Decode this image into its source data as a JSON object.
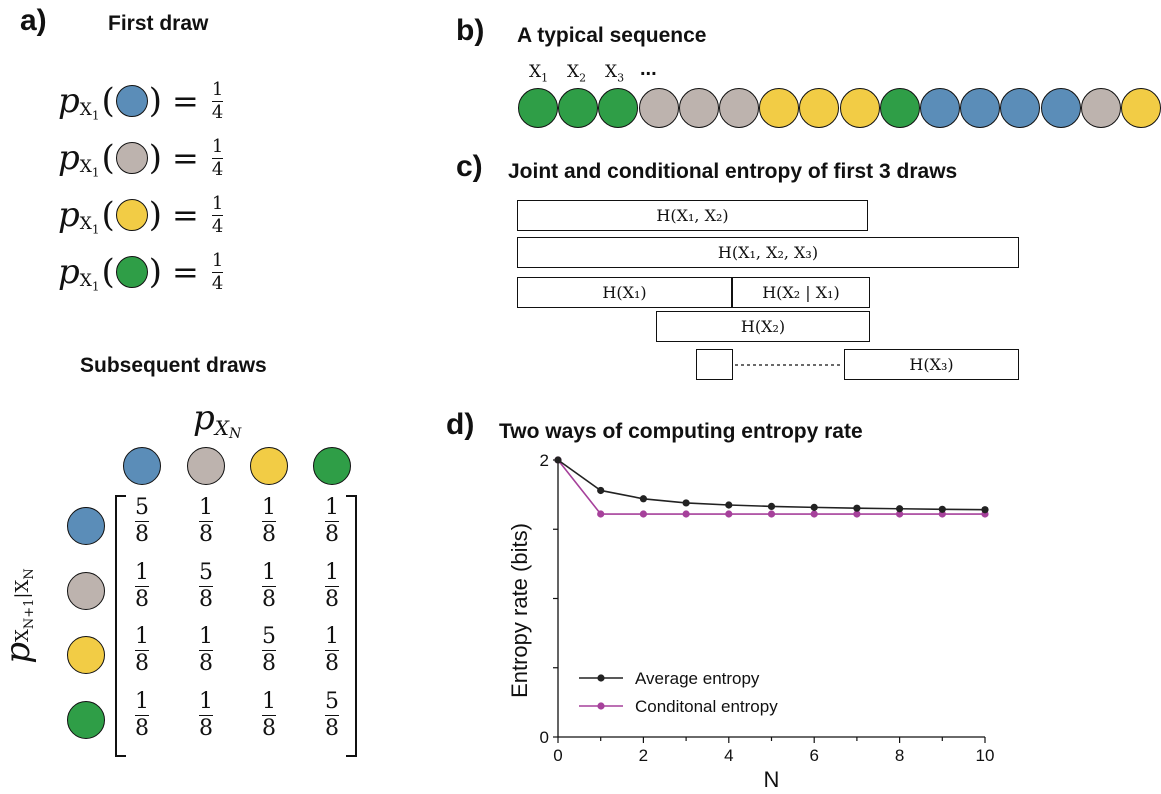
{
  "colors": {
    "blue": "#5b8db8",
    "gray": "#bdb3ae",
    "yellow": "#f2cc45",
    "green": "#2f9e47",
    "conditional": "#a6419b",
    "average": "#222222"
  },
  "panel_a": {
    "letter": "a)",
    "title": "First draw",
    "p_symbol": "p",
    "p_subscript": "X",
    "p_subscript_index": "1",
    "equals": "=",
    "prob_num": "1",
    "prob_den": "4",
    "first_draw_colors": [
      "blue",
      "gray",
      "yellow",
      "green"
    ],
    "subsequent_title": "Subsequent draws",
    "column_label_p": "p",
    "column_label_sub": "X",
    "column_label_subsub": "N",
    "row_label": "p",
    "row_label_sub": "X",
    "row_label_subsub1": "N+1",
    "row_label_bar": "|X",
    "row_label_subsub2": "N",
    "matrix_colors": [
      "blue",
      "gray",
      "yellow",
      "green"
    ],
    "matrix": [
      [
        [
          "5",
          "8"
        ],
        [
          "1",
          "8"
        ],
        [
          "1",
          "8"
        ],
        [
          "1",
          "8"
        ]
      ],
      [
        [
          "1",
          "8"
        ],
        [
          "5",
          "8"
        ],
        [
          "1",
          "8"
        ],
        [
          "1",
          "8"
        ]
      ],
      [
        [
          "1",
          "8"
        ],
        [
          "1",
          "8"
        ],
        [
          "5",
          "8"
        ],
        [
          "1",
          "8"
        ]
      ],
      [
        [
          "1",
          "8"
        ],
        [
          "1",
          "8"
        ],
        [
          "1",
          "8"
        ],
        [
          "5",
          "8"
        ]
      ]
    ]
  },
  "panel_b": {
    "letter": "b)",
    "title": "A typical sequence",
    "labels": [
      "X1",
      "X2",
      "X3"
    ],
    "label_base": "X",
    "label_subs": [
      "1",
      "2",
      "3"
    ],
    "ellipsis": "...",
    "sequence": [
      "green",
      "green",
      "green",
      "gray",
      "gray",
      "gray",
      "yellow",
      "yellow",
      "yellow",
      "green",
      "blue",
      "blue",
      "blue",
      "blue",
      "gray",
      "yellow"
    ]
  },
  "panel_c": {
    "letter": "c)",
    "title": "Joint and conditional entropy of first 3 draws",
    "boxes": [
      "H(X₁, X₂)",
      "H(X₁, X₂, X₃)",
      "H(X₁)",
      "H(X₂ | X₁)",
      "H(X₂)",
      "",
      "H(X₃)"
    ]
  },
  "panel_d": {
    "letter": "d)",
    "title": "Two ways of computing entropy rate",
    "chart_data": {
      "type": "line",
      "xlabel": "N",
      "ylabel": "Entropy rate (bits)",
      "xlim": [
        0,
        10
      ],
      "ylim": [
        0,
        2
      ],
      "xticks": [
        0,
        2,
        4,
        6,
        8,
        10
      ],
      "yticks_labeled": [
        0,
        2
      ],
      "grid": false,
      "legend_position": "bottom-left",
      "series": [
        {
          "name": "Average entropy",
          "color": "#222222",
          "x": [
            0,
            1,
            2,
            3,
            4,
            5,
            6,
            7,
            8,
            9,
            10
          ],
          "y": [
            2.0,
            1.78,
            1.72,
            1.69,
            1.675,
            1.665,
            1.658,
            1.652,
            1.648,
            1.644,
            1.641
          ]
        },
        {
          "name": "Conditonal entropy",
          "color": "#a6419b",
          "x": [
            0,
            1,
            2,
            3,
            4,
            5,
            6,
            7,
            8,
            9,
            10
          ],
          "y": [
            2.0,
            1.61,
            1.61,
            1.61,
            1.61,
            1.61,
            1.61,
            1.61,
            1.61,
            1.61,
            1.61
          ]
        }
      ]
    }
  }
}
